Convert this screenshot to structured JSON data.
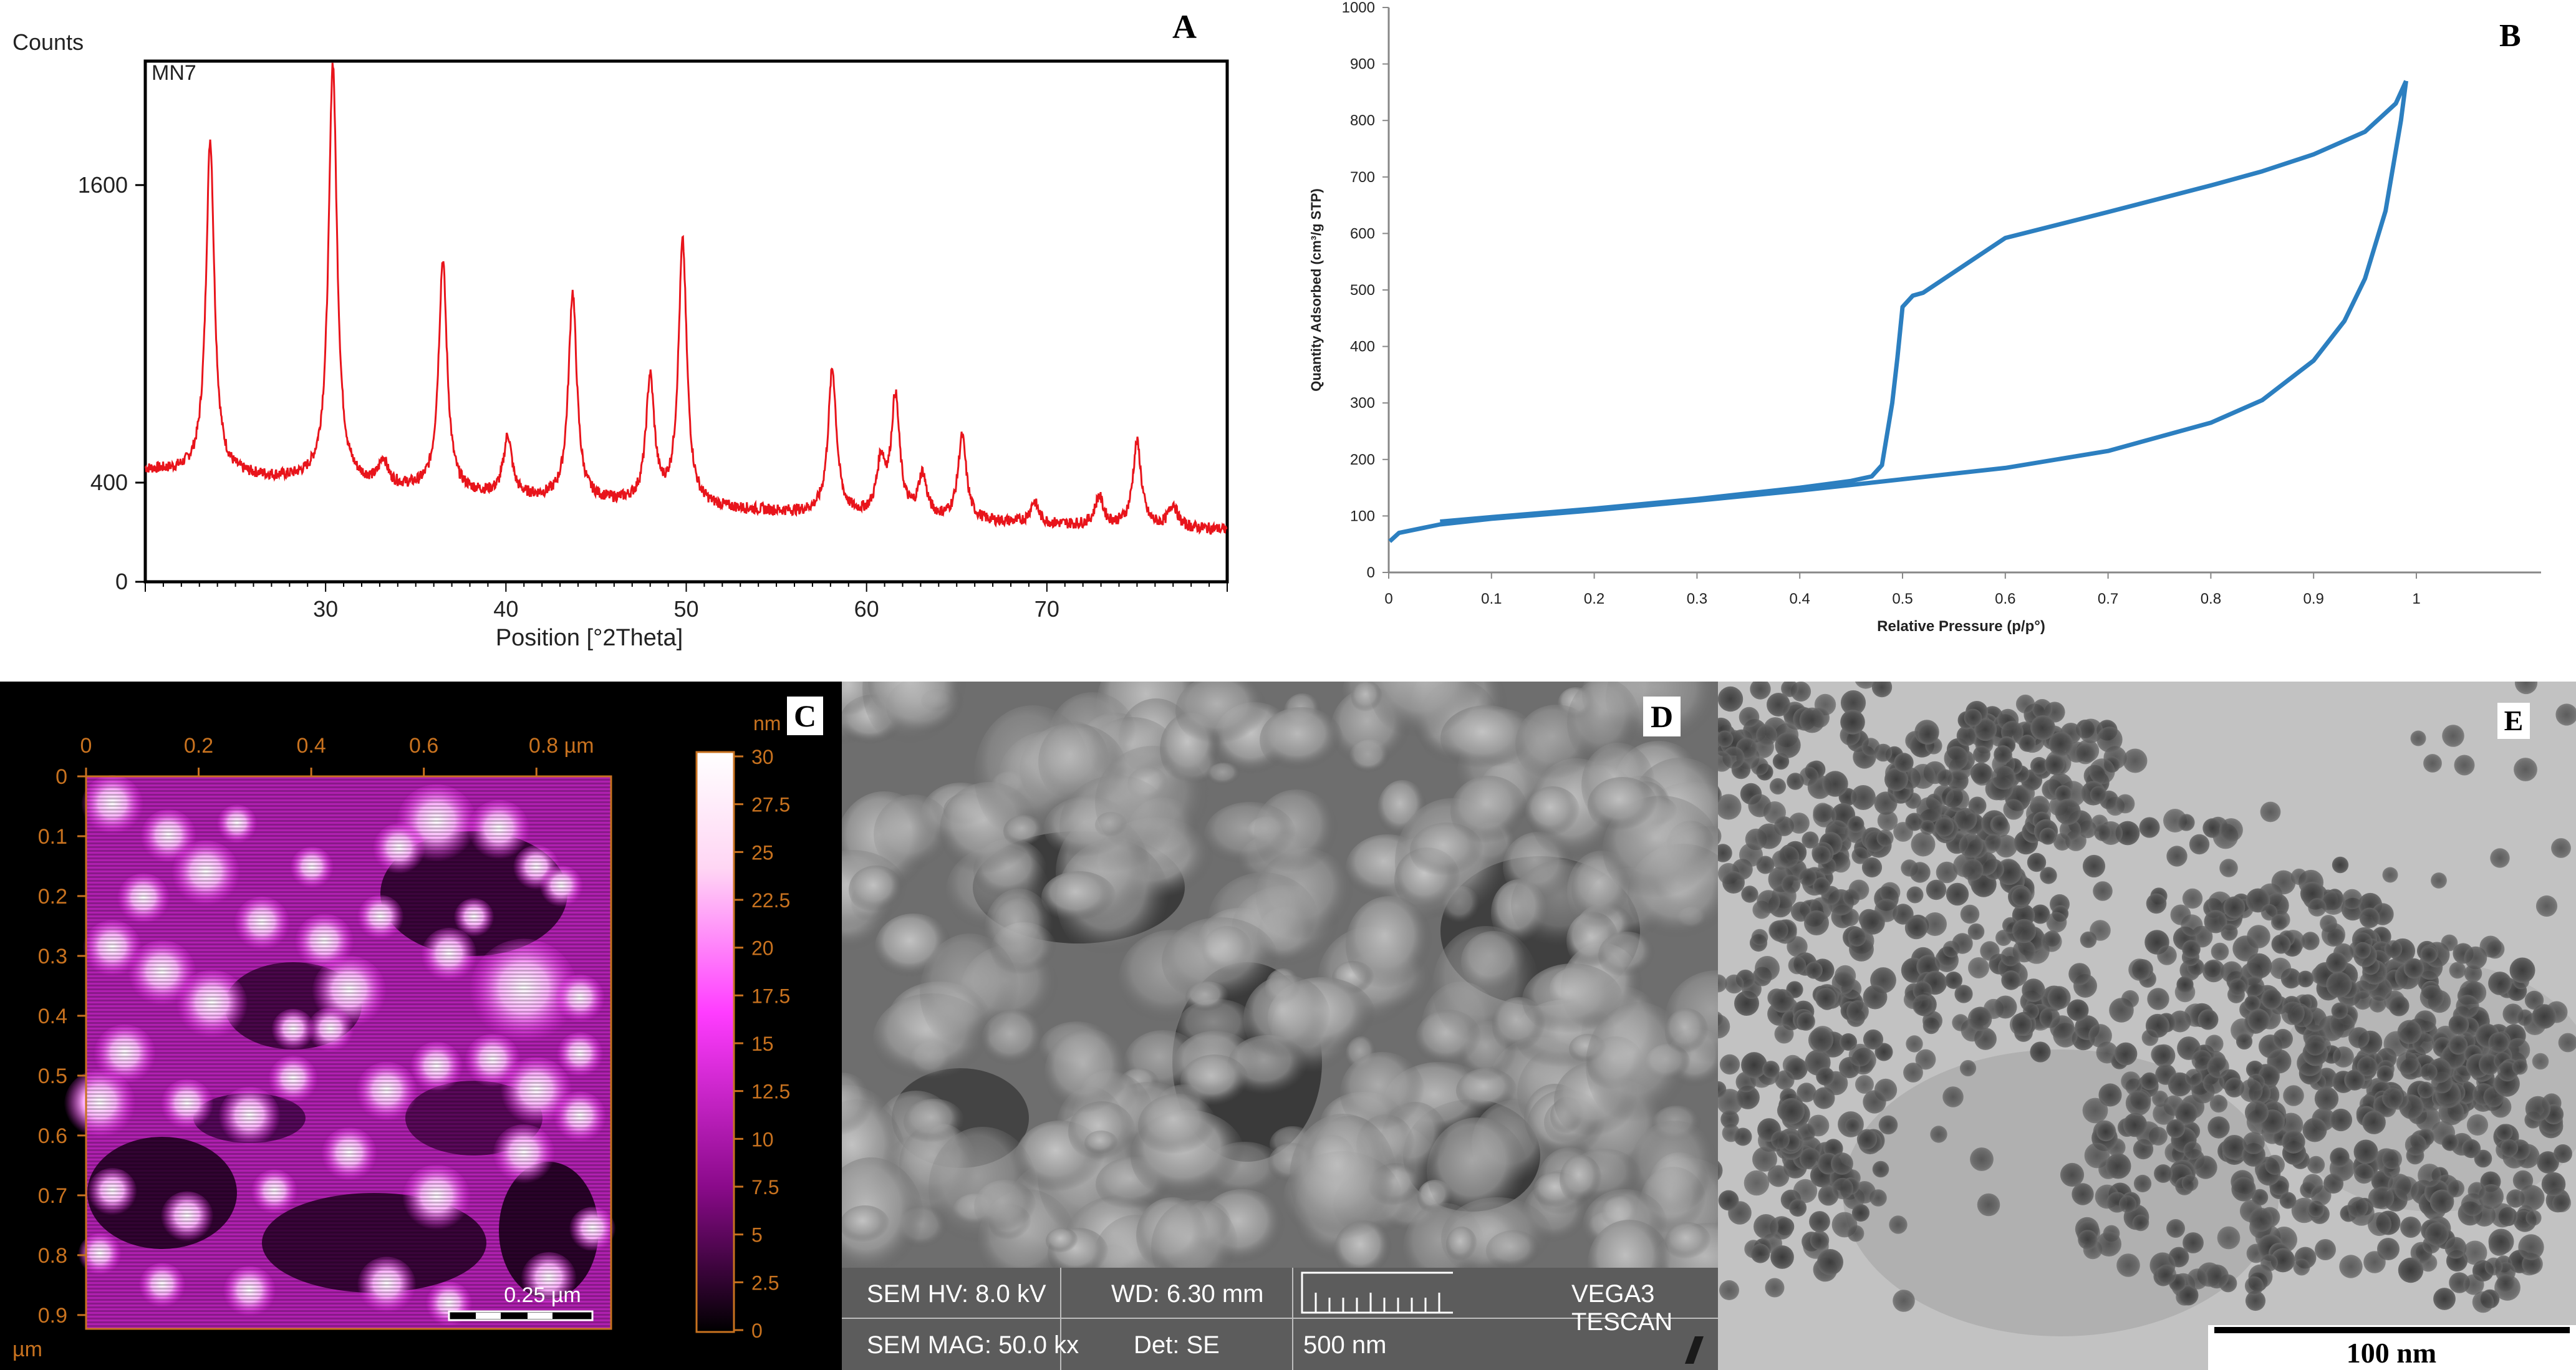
{
  "panel_letters": {
    "a": "A",
    "b": "B",
    "c": "C",
    "d": "D",
    "e": "E"
  },
  "colors": {
    "xrd_line": "#e8141b",
    "bet_line": "#2c7fc0",
    "afm_bg": "#000000",
    "afm_axis": "#c8721f",
    "afm_high": "#ffb8ff",
    "afm_mid": "#ff22ff",
    "sem_bg": "#828282",
    "tem_bg": "#bdbdbd"
  },
  "chart_data": [
    {
      "type": "line",
      "panel": "A",
      "sample_label": "MN7",
      "ylabel": "Counts",
      "xlabel": "Position [°2Theta]",
      "xlim": [
        20,
        80
      ],
      "ylim": [
        0,
        2100
      ],
      "x_ticks": [
        30,
        40,
        50,
        60,
        70
      ],
      "y_ticks": [
        0,
        400,
        1600
      ],
      "grid": false,
      "baseline": [
        [
          20,
          450
        ],
        [
          30,
          400
        ],
        [
          40,
          340
        ],
        [
          50,
          300
        ],
        [
          60,
          260
        ],
        [
          70,
          230
        ],
        [
          80,
          210
        ]
      ],
      "peaks": [
        {
          "x": 23.6,
          "y": 1780
        },
        {
          "x": 30.4,
          "y": 2090
        },
        {
          "x": 33.2,
          "y": 480
        },
        {
          "x": 36.5,
          "y": 1290
        },
        {
          "x": 40.1,
          "y": 580
        },
        {
          "x": 43.7,
          "y": 1160
        },
        {
          "x": 48.0,
          "y": 810
        },
        {
          "x": 49.8,
          "y": 1360
        },
        {
          "x": 58.1,
          "y": 850
        },
        {
          "x": 60.8,
          "y": 470
        },
        {
          "x": 61.6,
          "y": 730
        },
        {
          "x": 63.1,
          "y": 420
        },
        {
          "x": 65.3,
          "y": 580
        },
        {
          "x": 69.3,
          "y": 320
        },
        {
          "x": 72.9,
          "y": 340
        },
        {
          "x": 75.0,
          "y": 560
        },
        {
          "x": 77.0,
          "y": 310
        }
      ]
    },
    {
      "type": "line",
      "panel": "B",
      "ylabel": "Quantity Adsorbed (cm³/g STP)",
      "xlabel": "Relative Pressure (p/p°)",
      "xlim": [
        0,
        1
      ],
      "ylim": [
        0,
        1000
      ],
      "x_ticks": [
        "0",
        "0.1",
        "0.2",
        "0.3",
        "0.4",
        "0.5",
        "0.6",
        "0.7",
        "0.8",
        "0.9",
        "1"
      ],
      "y_ticks": [
        "0",
        "100",
        "200",
        "300",
        "400",
        "500",
        "600",
        "700",
        "800",
        "900",
        "1000"
      ],
      "grid": false,
      "series": [
        {
          "values": [
            [
              0.001,
              55
            ],
            [
              0.01,
              70
            ],
            [
              0.05,
              85
            ],
            [
              0.1,
              95
            ],
            [
              0.2,
              110
            ],
            [
              0.3,
              127
            ],
            [
              0.4,
              145
            ],
            [
              0.45,
              155
            ],
            [
              0.5,
              165
            ],
            [
              0.6,
              185
            ],
            [
              0.7,
              215
            ],
            [
              0.8,
              265
            ],
            [
              0.85,
              305
            ],
            [
              0.9,
              375
            ],
            [
              0.93,
              445
            ],
            [
              0.95,
              520
            ],
            [
              0.97,
              640
            ],
            [
              0.985,
              800
            ],
            [
              0.99,
              870
            ]
          ]
        },
        {
          "values": [
            [
              0.99,
              870
            ],
            [
              0.98,
              830
            ],
            [
              0.95,
              780
            ],
            [
              0.9,
              740
            ],
            [
              0.85,
              710
            ],
            [
              0.8,
              685
            ],
            [
              0.7,
              638
            ],
            [
              0.6,
              592
            ],
            [
              0.52,
              495
            ],
            [
              0.51,
              490
            ],
            [
              0.5,
              470
            ],
            [
              0.495,
              380
            ],
            [
              0.49,
              300
            ],
            [
              0.48,
              190
            ],
            [
              0.47,
              170
            ],
            [
              0.45,
              162
            ],
            [
              0.4,
              150
            ],
            [
              0.3,
              130
            ],
            [
              0.2,
              113
            ],
            [
              0.1,
              98
            ],
            [
              0.05,
              90
            ]
          ]
        }
      ]
    },
    {
      "type": "heatmap",
      "panel": "C",
      "x_ticks": [
        "0",
        "0.2",
        "0.4",
        "0.6",
        "0.8 µm"
      ],
      "y_ticks": [
        "0",
        "0.1",
        "0.2",
        "0.3",
        "0.4",
        "0.5",
        "0.6",
        "0.7",
        "0.8",
        "0.9"
      ],
      "y_unit": "µm",
      "colorbar_unit": "nm",
      "colorbar_ticks": [
        "30",
        "27.5",
        "25",
        "22.5",
        "20",
        "17.5",
        "15",
        "12.5",
        "10",
        "7.5",
        "5",
        "2.5",
        "0"
      ],
      "scale_bar": "0.25 µm"
    }
  ],
  "sem_info": {
    "hv": "SEM HV: 8.0 kV",
    "wd": "WD: 6.30 mm",
    "mag": "SEM MAG: 50.0 kx",
    "det": "Det: SE",
    "scale": "500 nm",
    "brand": "VEGA3 TESCAN"
  },
  "tem_scale": "100 nm"
}
